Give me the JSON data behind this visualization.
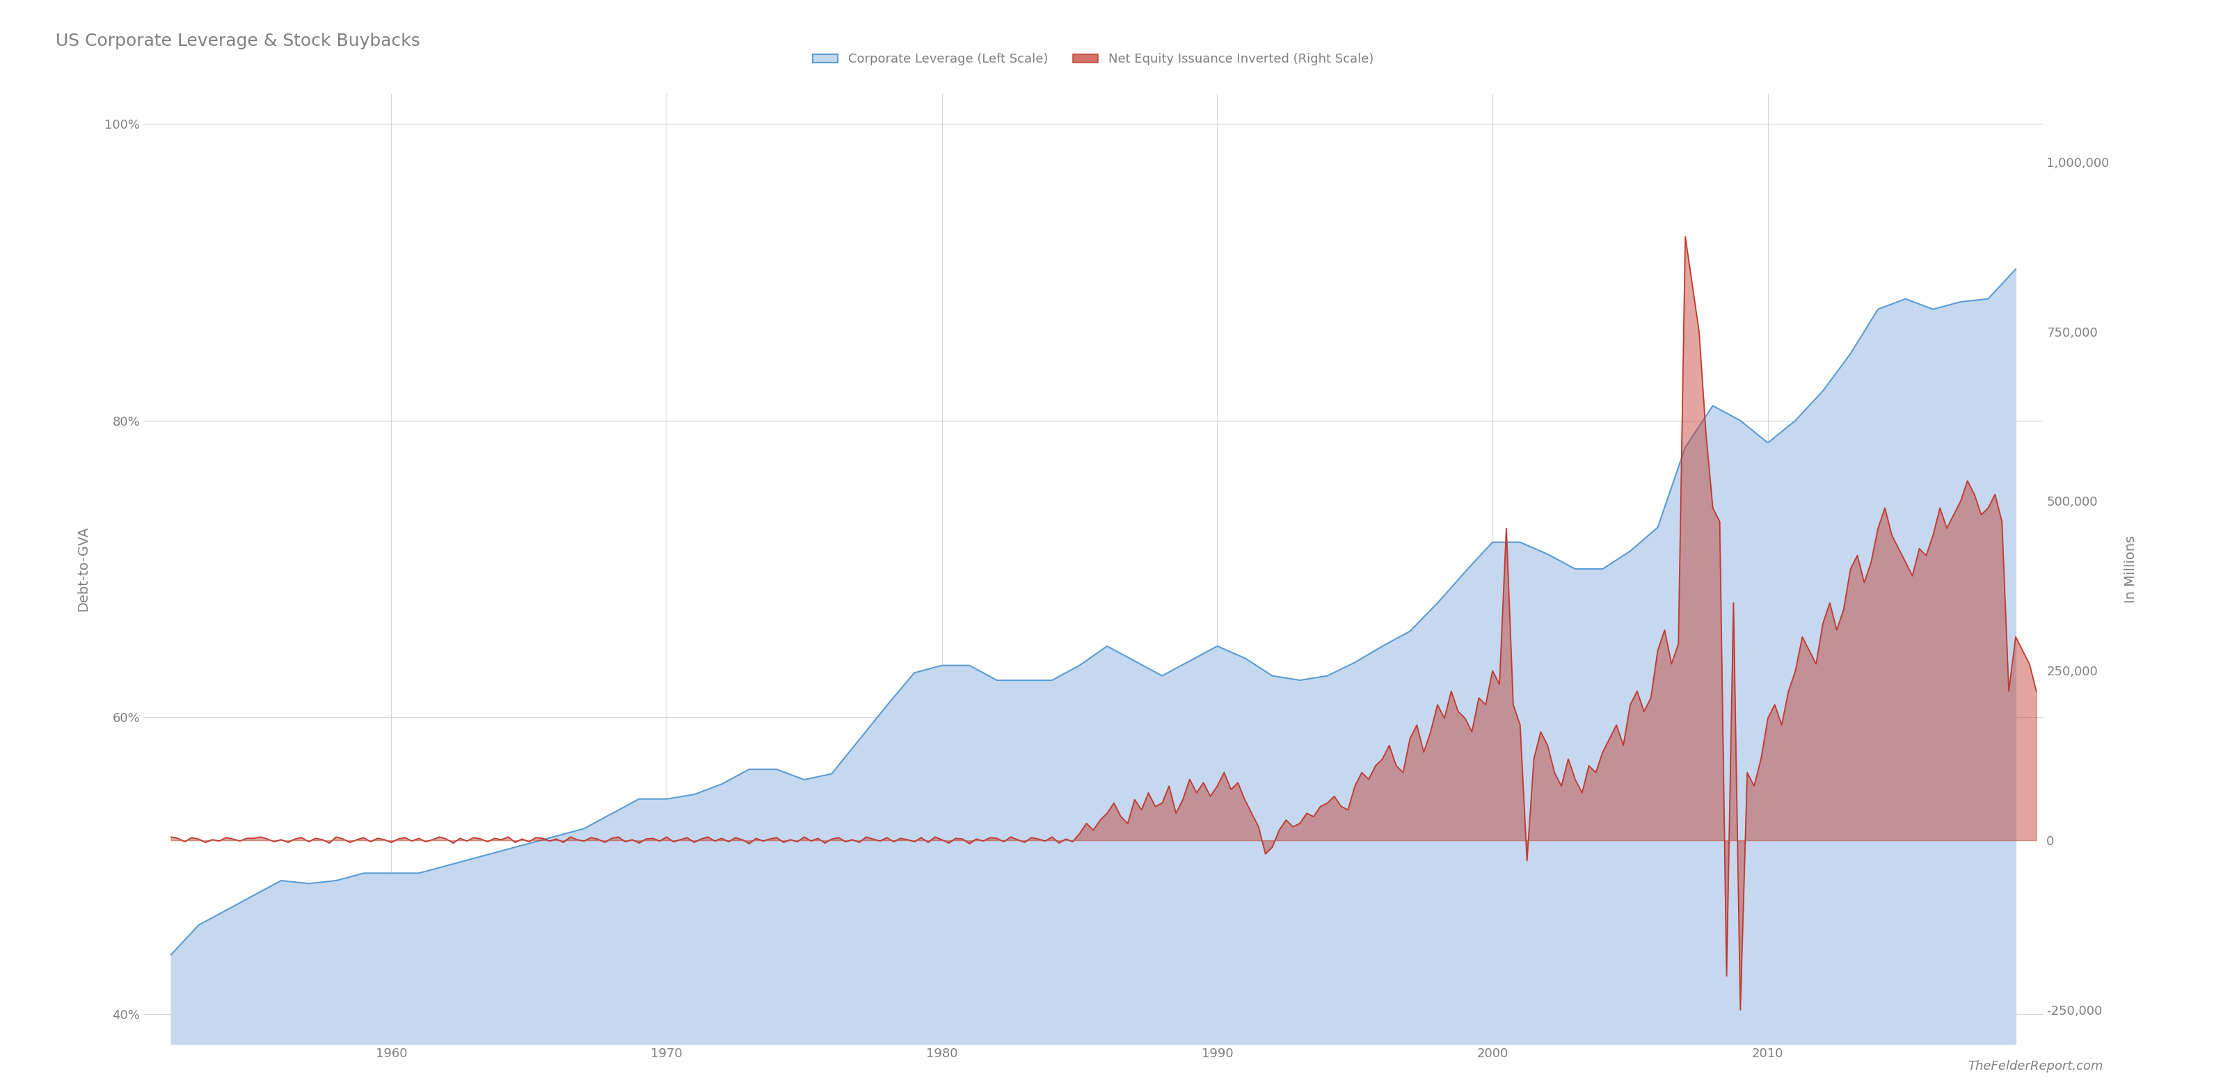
{
  "title": "US Corporate Leverage & Stock Buybacks",
  "ylabel_left": "Debt-to-GVA",
  "ylabel_right": "In Millions",
  "legend_labels": [
    "Corporate Leverage (Left Scale)",
    "Net Equity Issuance Inverted (Right Scale)"
  ],
  "watermark": "TheFelderReport.com",
  "blue_fill_color": "#c5d8f0",
  "blue_line_color": "#5b9bd5",
  "red_line_color": "#c0392b",
  "red_fill_color": "#c0392b",
  "background_color": "#ffffff",
  "grid_color": "#cccccc",
  "text_color": "#808080",
  "ylim_left": [
    0.38,
    1.02
  ],
  "ylim_right": [
    -300000,
    1100000
  ],
  "yticks_left": [
    0.4,
    0.6,
    0.8,
    1.0
  ],
  "yticks_right": [
    -250000,
    0,
    250000,
    500000,
    750000,
    1000000
  ],
  "xticks": [
    1960,
    1970,
    1980,
    1990,
    2000,
    2010
  ],
  "xlim": [
    1951,
    2020
  ],
  "leverage_years": [
    1952,
    1953,
    1954,
    1955,
    1956,
    1957,
    1958,
    1959,
    1960,
    1961,
    1962,
    1963,
    1964,
    1965,
    1966,
    1967,
    1968,
    1969,
    1970,
    1971,
    1972,
    1973,
    1974,
    1975,
    1976,
    1977,
    1978,
    1979,
    1980,
    1981,
    1982,
    1983,
    1984,
    1985,
    1986,
    1987,
    1988,
    1989,
    1990,
    1991,
    1992,
    1993,
    1994,
    1995,
    1996,
    1997,
    1998,
    1999,
    2000,
    2001,
    2002,
    2003,
    2004,
    2005,
    2006,
    2007,
    2008,
    2009,
    2010,
    2011,
    2012,
    2013,
    2014,
    2015,
    2016,
    2017,
    2018,
    2019
  ],
  "leverage_vals": [
    0.44,
    0.46,
    0.47,
    0.48,
    0.49,
    0.488,
    0.49,
    0.495,
    0.495,
    0.495,
    0.5,
    0.505,
    0.51,
    0.515,
    0.52,
    0.525,
    0.535,
    0.545,
    0.545,
    0.548,
    0.555,
    0.565,
    0.565,
    0.558,
    0.562,
    0.585,
    0.608,
    0.63,
    0.635,
    0.635,
    0.625,
    0.625,
    0.625,
    0.635,
    0.648,
    0.638,
    0.628,
    0.638,
    0.648,
    0.64,
    0.628,
    0.625,
    0.628,
    0.637,
    0.648,
    0.658,
    0.677,
    0.698,
    0.718,
    0.718,
    0.71,
    0.7,
    0.7,
    0.712,
    0.728,
    0.782,
    0.81,
    0.8,
    0.785,
    0.8,
    0.82,
    0.845,
    0.875,
    0.882,
    0.875,
    0.88,
    0.882,
    0.902
  ],
  "net_equity_quarters": [
    1952.0,
    1952.25,
    1952.5,
    1952.75,
    1953.0,
    1953.25,
    1953.5,
    1953.75,
    1954.0,
    1954.25,
    1954.5,
    1954.75,
    1955.0,
    1955.25,
    1955.5,
    1955.75,
    1956.0,
    1956.25,
    1956.5,
    1956.75,
    1957.0,
    1957.25,
    1957.5,
    1957.75,
    1958.0,
    1958.25,
    1958.5,
    1958.75,
    1959.0,
    1959.25,
    1959.5,
    1959.75,
    1960.0,
    1960.25,
    1960.5,
    1960.75,
    1961.0,
    1961.25,
    1961.5,
    1961.75,
    1962.0,
    1962.25,
    1962.5,
    1962.75,
    1963.0,
    1963.25,
    1963.5,
    1963.75,
    1964.0,
    1964.25,
    1964.5,
    1964.75,
    1965.0,
    1965.25,
    1965.5,
    1965.75,
    1966.0,
    1966.25,
    1966.5,
    1966.75,
    1967.0,
    1967.25,
    1967.5,
    1967.75,
    1968.0,
    1968.25,
    1968.5,
    1968.75,
    1969.0,
    1969.25,
    1969.5,
    1969.75,
    1970.0,
    1970.25,
    1970.5,
    1970.75,
    1971.0,
    1971.25,
    1971.5,
    1971.75,
    1972.0,
    1972.25,
    1972.5,
    1972.75,
    1973.0,
    1973.25,
    1973.5,
    1973.75,
    1974.0,
    1974.25,
    1974.5,
    1974.75,
    1975.0,
    1975.25,
    1975.5,
    1975.75,
    1976.0,
    1976.25,
    1976.5,
    1976.75,
    1977.0,
    1977.25,
    1977.5,
    1977.75,
    1978.0,
    1978.25,
    1978.5,
    1978.75,
    1979.0,
    1979.25,
    1979.5,
    1979.75,
    1980.0,
    1980.25,
    1980.5,
    1980.75,
    1981.0,
    1981.25,
    1981.5,
    1981.75,
    1982.0,
    1982.25,
    1982.5,
    1982.75,
    1983.0,
    1983.25,
    1983.5,
    1983.75,
    1984.0,
    1984.25,
    1984.5,
    1984.75,
    1985.0,
    1985.25,
    1985.5,
    1985.75,
    1986.0,
    1986.25,
    1986.5,
    1986.75,
    1987.0,
    1987.25,
    1987.5,
    1987.75,
    1988.0,
    1988.25,
    1988.5,
    1988.75,
    1989.0,
    1989.25,
    1989.5,
    1989.75,
    1990.0,
    1990.25,
    1990.5,
    1990.75,
    1991.0,
    1991.25,
    1991.5,
    1991.75,
    1992.0,
    1992.25,
    1992.5,
    1992.75,
    1993.0,
    1993.25,
    1993.5,
    1993.75,
    1994.0,
    1994.25,
    1994.5,
    1994.75,
    1995.0,
    1995.25,
    1995.5,
    1995.75,
    1996.0,
    1996.25,
    1996.5,
    1996.75,
    1997.0,
    1997.25,
    1997.5,
    1997.75,
    1998.0,
    1998.25,
    1998.5,
    1998.75,
    1999.0,
    1999.25,
    1999.5,
    1999.75,
    2000.0,
    2000.25,
    2000.5,
    2000.75,
    2001.0,
    2001.25,
    2001.5,
    2001.75,
    2002.0,
    2002.25,
    2002.5,
    2002.75,
    2003.0,
    2003.25,
    2003.5,
    2003.75,
    2004.0,
    2004.25,
    2004.5,
    2004.75,
    2005.0,
    2005.25,
    2005.5,
    2005.75,
    2006.0,
    2006.25,
    2006.5,
    2006.75,
    2007.0,
    2007.25,
    2007.5,
    2007.75,
    2008.0,
    2008.25,
    2008.5,
    2008.75,
    2009.0,
    2009.25,
    2009.5,
    2009.75,
    2010.0,
    2010.25,
    2010.5,
    2010.75,
    2011.0,
    2011.25,
    2011.5,
    2011.75,
    2012.0,
    2012.25,
    2012.5,
    2012.75,
    2013.0,
    2013.25,
    2013.5,
    2013.75,
    2014.0,
    2014.25,
    2014.5,
    2014.75,
    2015.0,
    2015.25,
    2015.5,
    2015.75,
    2016.0,
    2016.25,
    2016.5,
    2016.75,
    2017.0,
    2017.25,
    2017.5,
    2017.75,
    2018.0,
    2018.25,
    2018.5,
    2018.75,
    2019.0,
    2019.25,
    2019.5,
    2019.75
  ],
  "net_equity_vals": [
    5000,
    3000,
    -2000,
    4000,
    2000,
    -3000,
    1000,
    -1000,
    4000,
    2000,
    -1000,
    3000,
    3000,
    5000,
    2000,
    -2000,
    1000,
    -3000,
    2000,
    4000,
    -2000,
    3000,
    1000,
    -4000,
    5000,
    2000,
    -3000,
    1000,
    4000,
    -2000,
    3000,
    1000,
    -3000,
    2000,
    4000,
    -1000,
    3000,
    -2000,
    1000,
    5000,
    2000,
    -4000,
    3000,
    -1000,
    4000,
    2000,
    -2000,
    3000,
    1000,
    5000,
    -3000,
    2000,
    -2000,
    4000,
    3000,
    -1000,
    2000,
    -3000,
    5000,
    1000,
    -1000,
    4000,
    2000,
    -3000,
    3000,
    5000,
    -2000,
    1000,
    -4000,
    2000,
    3000,
    -1000,
    5000,
    -2000,
    1000,
    4000,
    -3000,
    2000,
    5000,
    -1000,
    3000,
    -2000,
    4000,
    1000,
    -5000,
    3000,
    -1000,
    2000,
    4000,
    -3000,
    1000,
    -2000,
    5000,
    -1000,
    3000,
    -4000,
    2000,
    4000,
    -2000,
    1000,
    -3000,
    5000,
    2000,
    -1000,
    4000,
    -2000,
    3000,
    1000,
    -2000,
    4000,
    -3000,
    5000,
    1000,
    -4000,
    3000,
    2000,
    -5000,
    2000,
    -1000,
    4000,
    3000,
    -2000,
    5000,
    1000,
    -3000,
    4000,
    2000,
    -1000,
    5000,
    -4000,
    2000,
    -2000,
    10000,
    25000,
    15000,
    30000,
    40000,
    55000,
    35000,
    25000,
    60000,
    45000,
    70000,
    50000,
    55000,
    80000,
    40000,
    60000,
    90000,
    70000,
    85000,
    65000,
    80000,
    100000,
    75000,
    85000,
    60000,
    40000,
    20000,
    -20000,
    -10000,
    15000,
    30000,
    20000,
    25000,
    40000,
    35000,
    50000,
    55000,
    65000,
    50000,
    45000,
    80000,
    100000,
    90000,
    110000,
    120000,
    140000,
    110000,
    100000,
    150000,
    170000,
    130000,
    160000,
    200000,
    180000,
    220000,
    190000,
    180000,
    160000,
    210000,
    200000,
    250000,
    230000,
    460000,
    200000,
    170000,
    -30000,
    120000,
    160000,
    140000,
    100000,
    80000,
    120000,
    90000,
    70000,
    110000,
    100000,
    130000,
    150000,
    170000,
    140000,
    200000,
    220000,
    190000,
    210000,
    280000,
    310000,
    260000,
    290000,
    890000,
    820000,
    750000,
    600000,
    490000,
    470000,
    -200000,
    350000,
    -250000,
    100000,
    80000,
    120000,
    180000,
    200000,
    170000,
    220000,
    250000,
    300000,
    280000,
    260000,
    320000,
    350000,
    310000,
    340000,
    400000,
    420000,
    380000,
    410000,
    460000,
    490000,
    450000,
    430000,
    410000,
    390000,
    430000,
    420000,
    450000,
    490000,
    460000,
    480000,
    500000,
    530000,
    510000,
    480000,
    490000,
    510000,
    470000,
    220000,
    300000,
    280000,
    260000,
    220000
  ]
}
